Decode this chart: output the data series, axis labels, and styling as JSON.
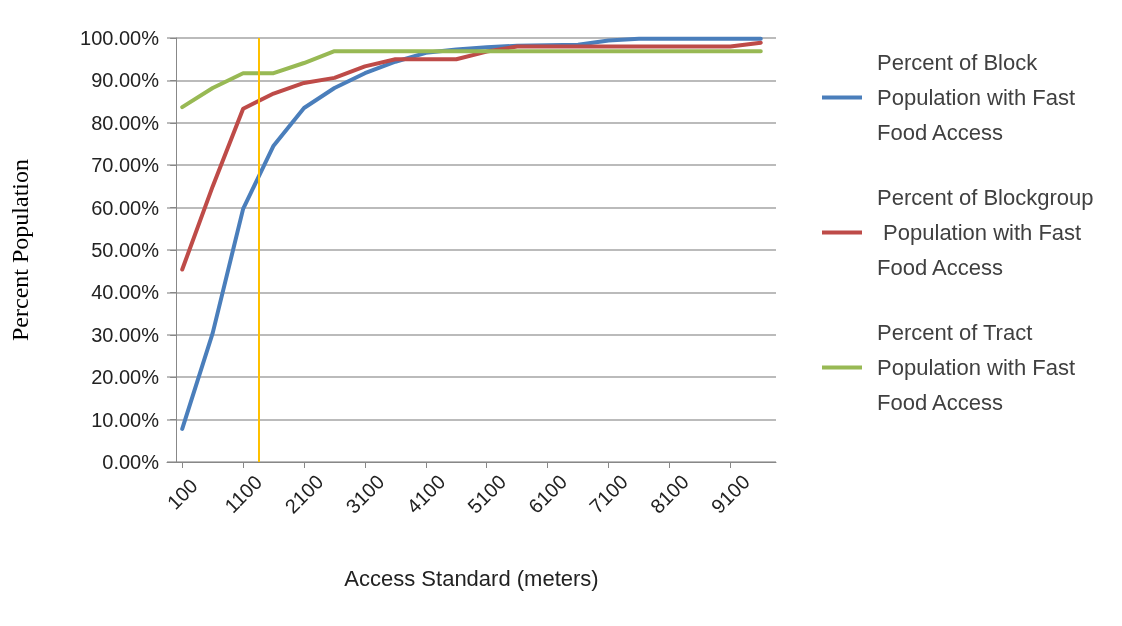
{
  "chart_data": {
    "type": "line",
    "xlabel": "Access Standard (meters)",
    "ylabel": "Percent Population",
    "x": [
      100,
      600,
      1100,
      1600,
      2100,
      2600,
      3100,
      3600,
      4100,
      4600,
      5100,
      5600,
      6100,
      6600,
      7100,
      7600,
      8100,
      8600,
      9100,
      9600
    ],
    "series": [
      {
        "name": "Percent of Block Population with Fast Food Access",
        "color": "#4a7ebb",
        "values": [
          7.8,
          30.4,
          59.7,
          74.6,
          83.5,
          88.2,
          91.7,
          94.4,
          96.5,
          97.3,
          97.8,
          98.2,
          98.3,
          98.4,
          99.4,
          99.8,
          99.8,
          99.8,
          99.8,
          99.8
        ]
      },
      {
        "name": "Percent of Blockgroup Population with Fast Food Access",
        "color": "#be4b48",
        "values": [
          45.4,
          65,
          83.3,
          86.9,
          89.4,
          90.6,
          93.3,
          95.0,
          95.0,
          95.0,
          96.8,
          98,
          98,
          98,
          98,
          98,
          98,
          98,
          98,
          98.9
        ]
      },
      {
        "name": "Percent of Tract Population with Fast Food Access",
        "color": "#98b954",
        "values": [
          83.7,
          88.2,
          91.7,
          91.7,
          94.1,
          96.9,
          96.9,
          96.9,
          96.9,
          96.9,
          96.9,
          96.9,
          96.9,
          96.9,
          96.9,
          96.9,
          96.9,
          96.9,
          96.9,
          96.9
        ]
      }
    ],
    "xlim": [
      -150,
      9850
    ],
    "xticks": [
      100,
      1100,
      2100,
      3100,
      4100,
      5100,
      6100,
      7100,
      8100,
      9100
    ],
    "ylim": [
      0,
      100
    ],
    "yticks": [
      {
        "value": 0,
        "label": "0.00%"
      },
      {
        "value": 10,
        "label": "10.00%"
      },
      {
        "value": 20,
        "label": "20.00%"
      },
      {
        "value": 30,
        "label": "30.00%"
      },
      {
        "value": 40,
        "label": "40.00%"
      },
      {
        "value": 50,
        "label": "50.00%"
      },
      {
        "value": 60,
        "label": "60.00%"
      },
      {
        "value": 70,
        "label": "70.00%"
      },
      {
        "value": 80,
        "label": "80.00%"
      },
      {
        "value": 90,
        "label": "90.00%"
      },
      {
        "value": 100,
        "label": "100.00%"
      }
    ],
    "ref_lines": [
      {
        "axis": "x",
        "value": 1350,
        "color": "#ffc000"
      }
    ],
    "grid": "y",
    "legend": "right",
    "marker": "none",
    "line_style": "solid"
  }
}
